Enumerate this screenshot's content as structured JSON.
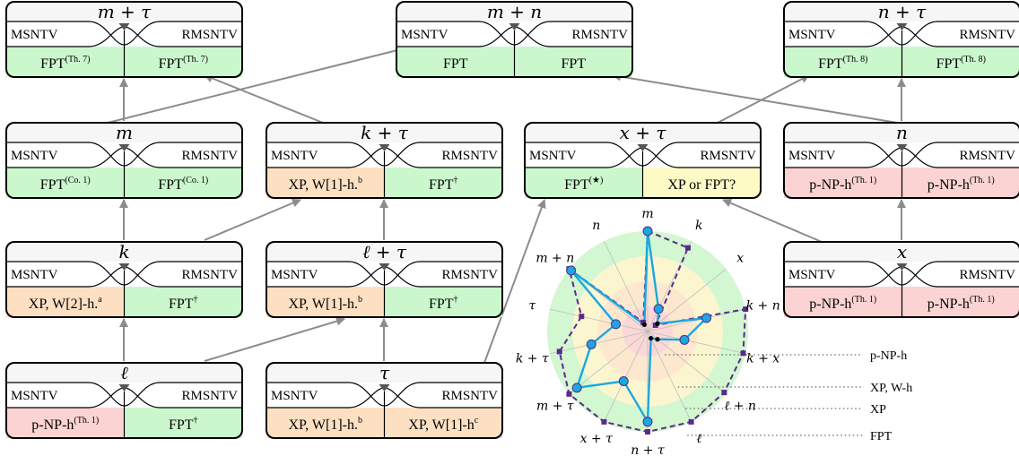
{
  "colors": {
    "green": "#cbf7cc",
    "orange": "#fde0c2",
    "red": "#fbd3d3",
    "yellow": "#fdfac6",
    "box_header": "#f6f6f6",
    "arrow": "#8c8c8c",
    "measured_line": "#1ba7e0",
    "bound_line": "#5a2a8a",
    "ring_fpt": "#d3f7d1",
    "ring_xp": "#fbf6cf",
    "ring_xpw": "#fde8cf",
    "ring_pnp": "#fbd7d7"
  },
  "boxes": [
    {
      "id": "m_plus_tau",
      "title": "m + τ",
      "left_label": "MSNTV",
      "right_label": "RMSNTV",
      "left_value": "FPT",
      "left_sup": "(Th. 7)",
      "left_color": "green",
      "right_value": "FPT",
      "right_sup": "(Th. 7)",
      "right_color": "green"
    },
    {
      "id": "m_plus_n",
      "title": "m + n",
      "left_label": "MSNTV",
      "right_label": "RMSNTV",
      "left_value": "FPT",
      "left_sup": "",
      "left_color": "green",
      "right_value": "FPT",
      "right_sup": "",
      "right_color": "green"
    },
    {
      "id": "n_plus_tau",
      "title": "n + τ",
      "left_label": "MSNTV",
      "right_label": "RMSNTV",
      "left_value": "FPT",
      "left_sup": "(Th. 8)",
      "left_color": "green",
      "right_value": "FPT",
      "right_sup": "(Th. 8)",
      "right_color": "green"
    },
    {
      "id": "m",
      "title": "m",
      "left_label": "MSNTV",
      "right_label": "RMSNTV",
      "left_value": "FPT",
      "left_sup": "(Co. 1)",
      "left_color": "green",
      "right_value": "FPT",
      "right_sup": "(Co. 1)",
      "right_color": "green"
    },
    {
      "id": "k_plus_tau",
      "title": "k + τ",
      "left_label": "MSNTV",
      "right_label": "RMSNTV",
      "left_value": "XP, W[1]-h.",
      "left_sup": "b",
      "left_color": "orange",
      "right_value": "FPT",
      "right_sup": "†",
      "right_color": "green"
    },
    {
      "id": "x_plus_tau",
      "title": "x + τ",
      "left_label": "MSNTV",
      "right_label": "RMSNTV",
      "left_value": "FPT",
      "left_sup": "(★)",
      "left_color": "green",
      "right_value": "XP or FPT?",
      "right_sup": "",
      "right_color": "yellow"
    },
    {
      "id": "n",
      "title": "n",
      "left_label": "MSNTV",
      "right_label": "RMSNTV",
      "left_value": "p-NP-h",
      "left_sup": "(Th. 1)",
      "left_color": "red",
      "right_value": "p-NP-h",
      "right_sup": "(Th. 1)",
      "right_color": "red"
    },
    {
      "id": "k",
      "title": "k",
      "left_label": "MSNTV",
      "right_label": "RMSNTV",
      "left_value": "XP, W[2]-h.",
      "left_sup": "a",
      "left_color": "orange",
      "right_value": "FPT",
      "right_sup": "†",
      "right_color": "green"
    },
    {
      "id": "l_plus_tau",
      "title": "ℓ + τ",
      "left_label": "MSNTV",
      "right_label": "RMSNTV",
      "left_value": "XP, W[1]-h.",
      "left_sup": "b",
      "left_color": "orange",
      "right_value": "FPT",
      "right_sup": "†",
      "right_color": "green"
    },
    {
      "id": "x",
      "title": "x",
      "left_label": "MSNTV",
      "right_label": "RMSNTV",
      "left_value": "p-NP-h",
      "left_sup": "(Th. 1)",
      "left_color": "red",
      "right_value": "p-NP-h",
      "right_sup": "(Th. 1)",
      "right_color": "red"
    },
    {
      "id": "l",
      "title": "ℓ",
      "left_label": "MSNTV",
      "right_label": "RMSNTV",
      "left_value": "p-NP-h",
      "left_sup": "(Th. 1)",
      "left_color": "red",
      "right_value": "FPT",
      "right_sup": "†",
      "right_color": "green"
    },
    {
      "id": "tau",
      "title": "τ",
      "left_label": "MSNTV",
      "right_label": "RMSNTV",
      "left_value": "XP, W[1]-h.",
      "left_sup": "b",
      "left_color": "orange",
      "right_value": "XP, W[1]-h",
      "right_sup": "c",
      "right_color": "orange"
    }
  ],
  "radar": {
    "axes": [
      "m",
      "k",
      "x",
      "k + n",
      "k + x",
      "ℓ + n",
      "ℓ",
      "n + τ",
      "x + τ",
      "m + τ",
      "k + τ",
      "τ",
      "m + n",
      "n"
    ],
    "levels": [
      "p-NP-h",
      "XP, W-h",
      "XP",
      "FPT"
    ],
    "measured": [
      4,
      1,
      0.5,
      2.4,
      1.5,
      0.5,
      0.3,
      3.6,
      2.2,
      3.6,
      2.3,
      1.3,
      3.9,
      0.3
    ],
    "bound": [
      4,
      3.7,
      0.4,
      4,
      3.9,
      3.9,
      4,
      4,
      4,
      4,
      3.6,
      2.7,
      4,
      0.4
    ]
  }
}
